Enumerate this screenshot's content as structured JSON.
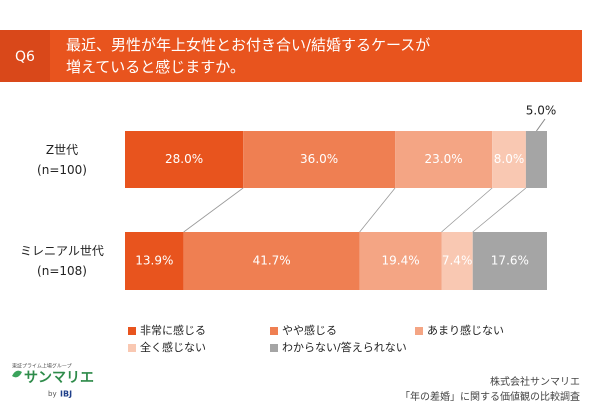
{
  "question": "Q6",
  "chart_data": {
    "type": "stacked-bar-horizontal",
    "title": "最近、男性が年上女性とお付き合い/結婚するケースが\n増えていると感じますか。",
    "categories": [
      "Z世代\n(n=100)",
      "ミレニアル世代\n(n=108)"
    ],
    "xlim": [
      0,
      100
    ],
    "series": [
      {
        "name": "非常に感じる",
        "color": "#e8541e",
        "values": [
          28.0,
          13.9
        ],
        "value_labels": [
          "28.0%",
          "13.9%"
        ]
      },
      {
        "name": "やや感じる",
        "color": "#ef7f52",
        "values": [
          36.0,
          41.7
        ],
        "value_labels": [
          "36.0%",
          "41.7%"
        ]
      },
      {
        "name": "あまり感じない",
        "color": "#f4a584",
        "values": [
          23.0,
          19.4
        ],
        "value_labels": [
          "23.0%",
          "19.4%"
        ]
      },
      {
        "name": "全く感じない",
        "color": "#f9c8b2",
        "values": [
          8.0,
          7.4
        ],
        "value_labels": [
          "8.0%",
          "7.4%"
        ]
      },
      {
        "name": "わからない/答えられない",
        "color": "#a5a5a5",
        "values": [
          5.0,
          17.6
        ],
        "value_labels": [
          "5.0%",
          "17.6%"
        ]
      }
    ]
  },
  "logo": {
    "group": "東証プライム上場グループ",
    "brand": "サンマリエ",
    "by": "by",
    "parent": "IBJ"
  },
  "footer": {
    "company": "株式会社サンマリエ",
    "survey": "「年の差婚」に関する価値観の比較調査"
  }
}
